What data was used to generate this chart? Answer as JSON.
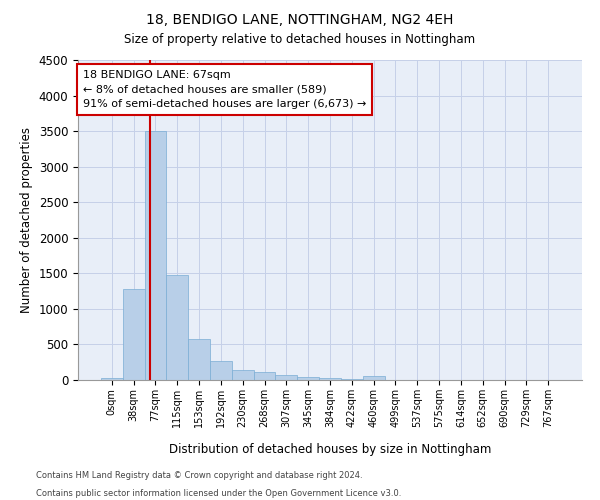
{
  "title1": "18, BENDIGO LANE, NOTTINGHAM, NG2 4EH",
  "title2": "Size of property relative to detached houses in Nottingham",
  "xlabel": "Distribution of detached houses by size in Nottingham",
  "ylabel": "Number of detached properties",
  "bar_color": "#b8cfe8",
  "bar_edge_color": "#7aadd4",
  "background_color": "#e8eef8",
  "grid_color": "#c5d0e8",
  "categories": [
    "0sqm",
    "38sqm",
    "77sqm",
    "115sqm",
    "153sqm",
    "192sqm",
    "230sqm",
    "268sqm",
    "307sqm",
    "345sqm",
    "384sqm",
    "422sqm",
    "460sqm",
    "499sqm",
    "537sqm",
    "575sqm",
    "614sqm",
    "652sqm",
    "690sqm",
    "729sqm",
    "767sqm"
  ],
  "values": [
    30,
    1280,
    3500,
    1480,
    570,
    270,
    140,
    110,
    75,
    45,
    25,
    10,
    50,
    5,
    0,
    0,
    0,
    0,
    0,
    0,
    0
  ],
  "ylim": [
    0,
    4500
  ],
  "yticks": [
    0,
    500,
    1000,
    1500,
    2000,
    2500,
    3000,
    3500,
    4000,
    4500
  ],
  "annotation_text": "18 BENDIGO LANE: 67sqm\n← 8% of detached houses are smaller (589)\n91% of semi-detached houses are larger (6,673) →",
  "annotation_box_color": "#ffffff",
  "annotation_box_edge": "#cc0000",
  "red_line_color": "#cc0000",
  "footer1": "Contains HM Land Registry data © Crown copyright and database right 2024.",
  "footer2": "Contains public sector information licensed under the Open Government Licence v3.0."
}
